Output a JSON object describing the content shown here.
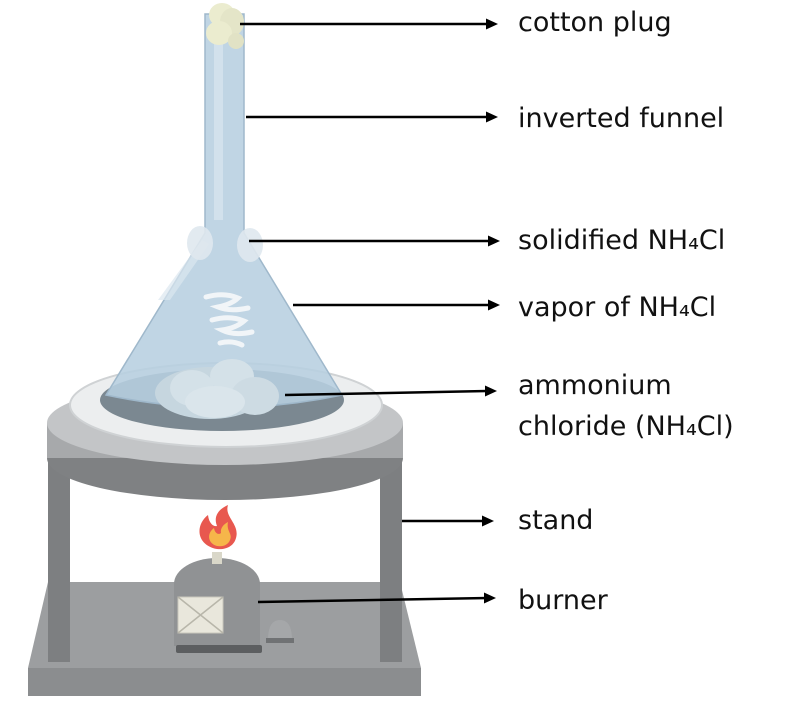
{
  "labels": {
    "cotton_plug": "cotton plug",
    "inverted_funnel": "inverted funnel",
    "solidified": "solidified NH₄Cl",
    "vapor": "vapor of NH₄Cl",
    "ammonium_line1": "ammonium",
    "ammonium_line2": "chloride (NH₄Cl)",
    "stand": "stand",
    "burner": "burner"
  },
  "colors": {
    "funnel_glass": "#b7cfe0",
    "stand_gray": "#b4b6b8",
    "leg_dark": "#7d7f81",
    "dish_dark": "#7b8891",
    "flame_outer": "#e8584f",
    "flame_inner": "#f6b64a",
    "arrow": "#000000"
  }
}
